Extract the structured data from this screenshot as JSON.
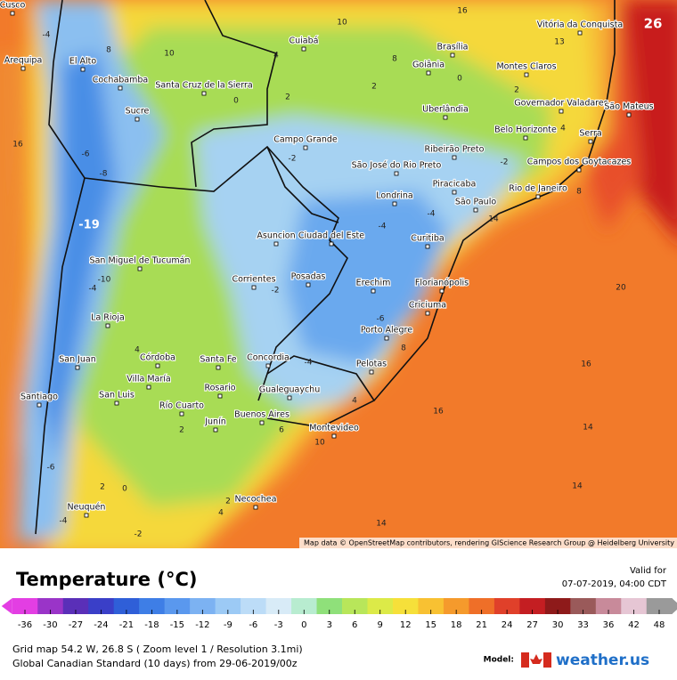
{
  "map": {
    "attribution": "Map data © OpenStreetMap contributors, rendering GIScience Research Group @ Heidelberg University",
    "max_label": "26",
    "min_label": "-19",
    "cities": [
      "Cusco",
      "Arequipa",
      "El Alto",
      "Cochabamba",
      "Santa Cruz de la Sierra",
      "Cuiabá",
      "Brasília",
      "Goiânia",
      "Montes Claros",
      "Vitória da Conquista",
      "Sucre",
      "Governador Valadares",
      "São Mateus",
      "Uberlândia",
      "Belo Horizonte",
      "Serra",
      "Campo Grande",
      "Ribeirão Preto",
      "São José do Rio Preto",
      "Campos dos Goytacazes",
      "Piracicaba",
      "Rio de Janeiro",
      "Londrina",
      "São Paulo",
      "Asuncion",
      "Ciudad del Este",
      "Curitiba",
      "San Miguel de Tucumán",
      "Corrientes",
      "Posadas",
      "Erechim",
      "Florianópolis",
      "Criciuma",
      "La Rioja",
      "Porto Alegre",
      "Córdoba",
      "San Juan",
      "Santa Fe",
      "Concordia",
      "Pelotas",
      "Villa María",
      "Rosario",
      "Gualeguaychu",
      "San Luis",
      "Santiago",
      "Buenos Aires",
      "Río Cuarto",
      "Junín",
      "Montevideo",
      "Necochea",
      "Neuquén"
    ],
    "contour_labels": [
      "16",
      "10",
      "13",
      "-4",
      "8",
      "10",
      "4",
      "8",
      "0",
      "2",
      "2",
      "0",
      "2",
      "-2",
      "16",
      "-6",
      "-8",
      "4",
      "-2",
      "8",
      "-4",
      "14",
      "-4",
      "20",
      "16",
      "16",
      "14",
      "14",
      "14",
      "10",
      "2",
      "4",
      "-4",
      "-10",
      "-6",
      "8",
      "6",
      "4",
      "2",
      "-4",
      "-2",
      "-6",
      "0",
      "2",
      "4",
      "-2",
      "-4"
    ]
  },
  "legend": {
    "title": "Temperature (°C)",
    "ticks": [
      -36,
      -30,
      -27,
      -24,
      -21,
      -18,
      -15,
      -12,
      -9,
      -6,
      -3,
      0,
      3,
      6,
      9,
      12,
      15,
      18,
      21,
      24,
      27,
      30,
      33,
      36,
      42,
      48
    ],
    "colors": [
      "#e33ee3",
      "#9a34c8",
      "#5a2fb8",
      "#3a3fc8",
      "#2f5fd8",
      "#3e7ee6",
      "#5a98ee",
      "#7cb2f2",
      "#9ccaf5",
      "#bcdcf7",
      "#d8ebf7",
      "#b8ecd0",
      "#8fe07a",
      "#b8e65a",
      "#dcea48",
      "#f6e03a",
      "#f8c132",
      "#f59a2c",
      "#ef6f28",
      "#e0402a",
      "#c41e22",
      "#8e1a1a",
      "#9a5a5a",
      "#c88a9a",
      "#e6c6d4",
      "#9a9a9a"
    ]
  },
  "header": {
    "valid_for": "Valid for",
    "valid_time": "07-07-2019, 04:00 CDT"
  },
  "footer": {
    "grid": "Grid map 54.2 W, 26.8 S ( Zoom level 1 / Resolution 3.1mi)",
    "model_run": "Global Canadian Standard (10 days) from 29-06-2019/00z",
    "model_label": "Model:",
    "brand": "weather.us"
  }
}
